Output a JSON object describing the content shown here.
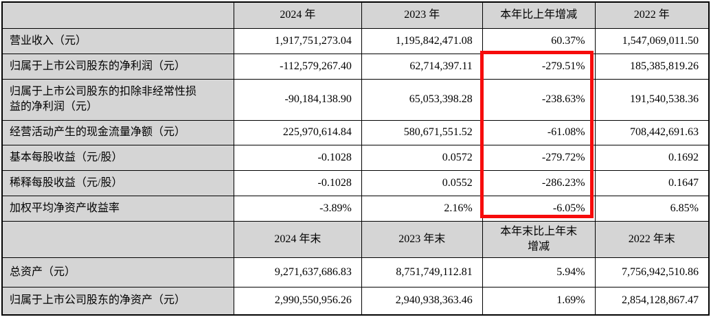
{
  "colors": {
    "header_bg": "#d5d5d5",
    "label_bg": "#d5d5d5",
    "border": "#000000",
    "highlight_red": "#f60c0c"
  },
  "table": {
    "section_annual": {
      "headers": [
        "2024 年",
        "2023 年",
        "本年比上年增减",
        "2022 年"
      ],
      "rows": [
        {
          "label": "营业收入（元）",
          "y2024": "1,917,751,273.04",
          "y2023": "1,195,842,471.08",
          "change": "60.37%",
          "y2022": "1,547,069,011.50"
        },
        {
          "label": "归属于上市公司股东的净利润（元）",
          "y2024": "-112,579,267.40",
          "y2023": "62,714,397.11",
          "change": "-279.51%",
          "y2022": "185,385,819.26"
        },
        {
          "label": "归属于上市公司股东的扣除非经常性损益的净利润（元）",
          "y2024": "-90,184,138.90",
          "y2023": "65,053,398.28",
          "change": "-238.63%",
          "y2022": "191,540,538.36"
        },
        {
          "label": "经营活动产生的现金流量净额（元）",
          "y2024": "225,970,614.84",
          "y2023": "580,671,551.52",
          "change": "-61.08%",
          "y2022": "708,442,691.63"
        },
        {
          "label": "基本每股收益（元/股）",
          "y2024": "-0.1028",
          "y2023": "0.0572",
          "change": "-279.72%",
          "y2022": "0.1692"
        },
        {
          "label": "稀释每股收益（元/股）",
          "y2024": "-0.1028",
          "y2023": "0.0552",
          "change": "-286.23%",
          "y2022": "0.1647"
        },
        {
          "label": "加权平均净资产收益率",
          "y2024": "-3.89%",
          "y2023": "2.16%",
          "change": "-6.05%",
          "y2022": "6.85%"
        }
      ]
    },
    "section_eoy": {
      "headers": [
        "2024 年末",
        "2023 年末",
        "本年末比上年末增减",
        "2022 年末"
      ],
      "header_change_line1": "本年末比上年末",
      "header_change_line2": "增减",
      "rows": [
        {
          "label": "总资产（元）",
          "y2024": "9,271,637,686.83",
          "y2023": "8,751,749,112.81",
          "change": "5.94%",
          "y2022": "7,756,942,510.86"
        },
        {
          "label": "归属于上市公司股东的净资产（元）",
          "y2024": "2,990,550,956.26",
          "y2023": "2,940,938,363.46",
          "change": "1.69%",
          "y2022": "2,854,128,867.47"
        }
      ]
    }
  },
  "highlight_box": {
    "purpose": "red emphasis rectangle around year-over-year change values from net profit through weighted average ROE"
  }
}
